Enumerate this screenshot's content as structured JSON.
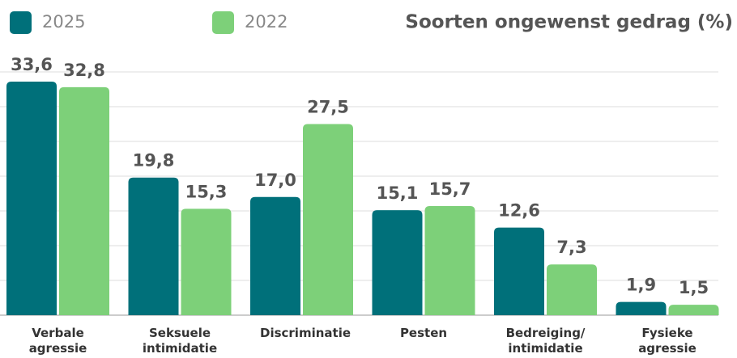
{
  "chart_data": {
    "type": "bar",
    "title": "Soorten ongewenst gedrag (%)",
    "categories": [
      "Verbale agressie",
      "Seksuele intimidatie",
      "Discriminatie",
      "Pesten",
      "Bedreiging/ intimidatie",
      "Fysieke agressie"
    ],
    "series": [
      {
        "name": "2025",
        "color": "#00707a",
        "values": [
          33.6,
          19.8,
          17.0,
          15.1,
          12.6,
          1.9
        ],
        "value_labels": [
          "33,6",
          "19,8",
          "17,0",
          "15,1",
          "12,6",
          "1,9"
        ]
      },
      {
        "name": "2022",
        "color": "#7dd079",
        "values": [
          32.8,
          15.3,
          27.5,
          15.7,
          7.3,
          1.5
        ],
        "value_labels": [
          "32,8",
          "15,3",
          "27,5",
          "15,7",
          "7,3",
          "1,5"
        ]
      }
    ],
    "ylim": [
      0,
      35
    ],
    "yticks": [
      0,
      5,
      10,
      15,
      20,
      25,
      30,
      35
    ],
    "grid": true,
    "legend": "top-left"
  }
}
